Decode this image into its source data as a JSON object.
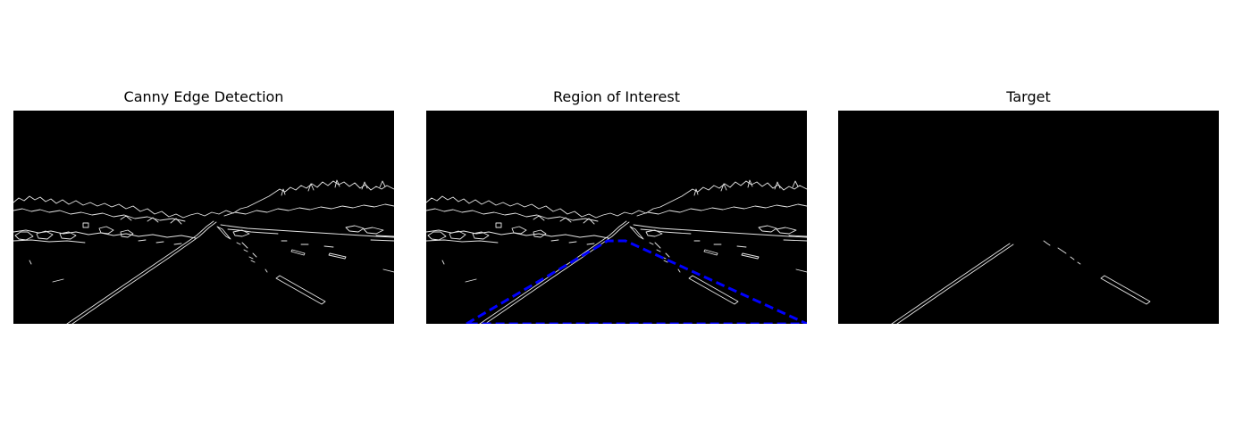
{
  "panels": [
    {
      "title": "Canny Edge Detection",
      "image": "canny-edge-map"
    },
    {
      "title": "Region of Interest",
      "image": "canny-edge-map-with-roi-overlay",
      "overlay_color": "#0000ff"
    },
    {
      "title": "Target",
      "image": "masked-lane-edges"
    }
  ],
  "colors": {
    "background": "#000000",
    "edges": "#e6e6e6",
    "roi_outline": "#0000ff"
  }
}
